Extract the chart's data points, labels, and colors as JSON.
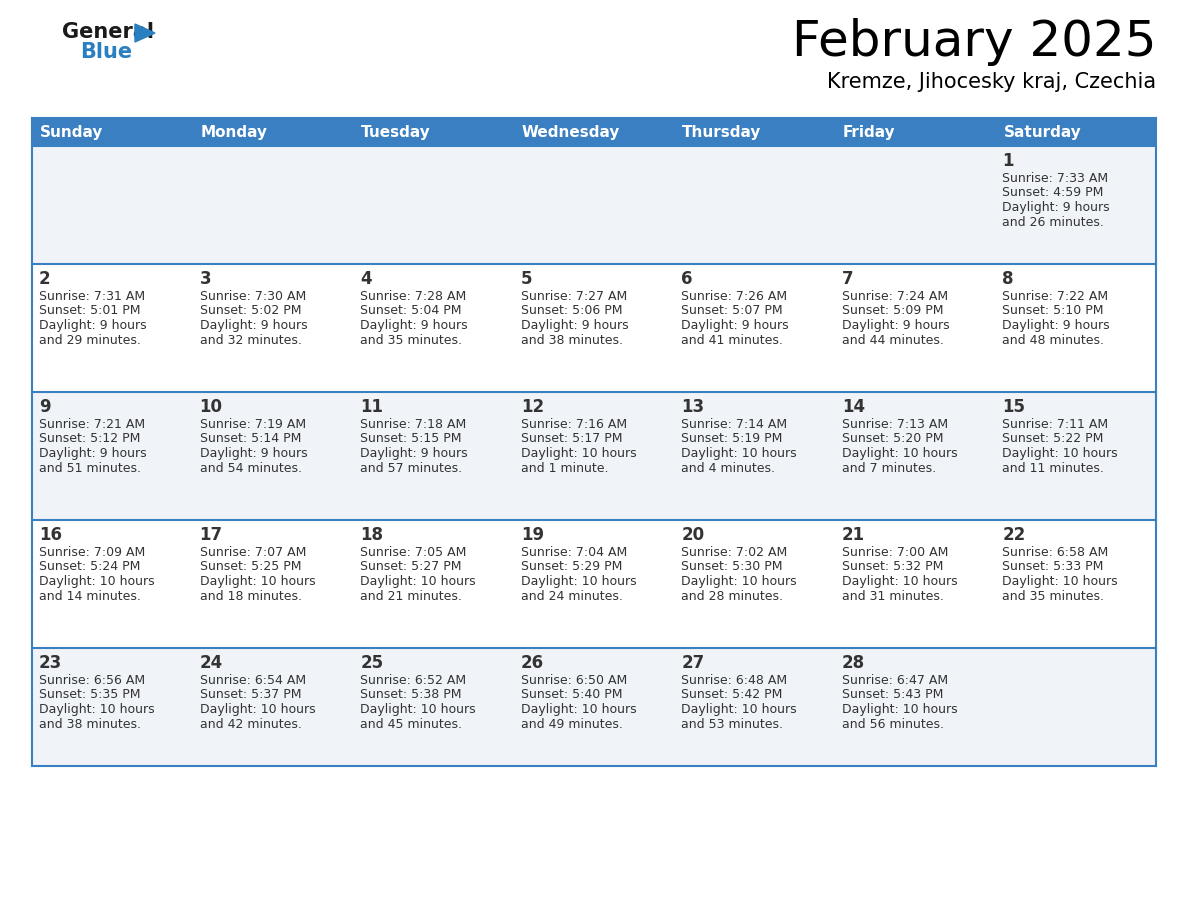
{
  "title": "February 2025",
  "subtitle": "Kremze, Jihocesky kraj, Czechia",
  "header_bg": "#3a7fc1",
  "header_text_color": "#ffffff",
  "border_color": "#3a7fc1",
  "cell_bg_odd": "#f0f4f8",
  "cell_bg_even": "#ffffff",
  "text_color": "#333333",
  "day_names": [
    "Sunday",
    "Monday",
    "Tuesday",
    "Wednesday",
    "Thursday",
    "Friday",
    "Saturday"
  ],
  "days": [
    {
      "day": 1,
      "col": 6,
      "row": 0,
      "sunrise": "7:33 AM",
      "sunset": "4:59 PM",
      "daylight": "9 hours",
      "daylight2": "and 26 minutes."
    },
    {
      "day": 2,
      "col": 0,
      "row": 1,
      "sunrise": "7:31 AM",
      "sunset": "5:01 PM",
      "daylight": "9 hours",
      "daylight2": "and 29 minutes."
    },
    {
      "day": 3,
      "col": 1,
      "row": 1,
      "sunrise": "7:30 AM",
      "sunset": "5:02 PM",
      "daylight": "9 hours",
      "daylight2": "and 32 minutes."
    },
    {
      "day": 4,
      "col": 2,
      "row": 1,
      "sunrise": "7:28 AM",
      "sunset": "5:04 PM",
      "daylight": "9 hours",
      "daylight2": "and 35 minutes."
    },
    {
      "day": 5,
      "col": 3,
      "row": 1,
      "sunrise": "7:27 AM",
      "sunset": "5:06 PM",
      "daylight": "9 hours",
      "daylight2": "and 38 minutes."
    },
    {
      "day": 6,
      "col": 4,
      "row": 1,
      "sunrise": "7:26 AM",
      "sunset": "5:07 PM",
      "daylight": "9 hours",
      "daylight2": "and 41 minutes."
    },
    {
      "day": 7,
      "col": 5,
      "row": 1,
      "sunrise": "7:24 AM",
      "sunset": "5:09 PM",
      "daylight": "9 hours",
      "daylight2": "and 44 minutes."
    },
    {
      "day": 8,
      "col": 6,
      "row": 1,
      "sunrise": "7:22 AM",
      "sunset": "5:10 PM",
      "daylight": "9 hours",
      "daylight2": "and 48 minutes."
    },
    {
      "day": 9,
      "col": 0,
      "row": 2,
      "sunrise": "7:21 AM",
      "sunset": "5:12 PM",
      "daylight": "9 hours",
      "daylight2": "and 51 minutes."
    },
    {
      "day": 10,
      "col": 1,
      "row": 2,
      "sunrise": "7:19 AM",
      "sunset": "5:14 PM",
      "daylight": "9 hours",
      "daylight2": "and 54 minutes."
    },
    {
      "day": 11,
      "col": 2,
      "row": 2,
      "sunrise": "7:18 AM",
      "sunset": "5:15 PM",
      "daylight": "9 hours",
      "daylight2": "and 57 minutes."
    },
    {
      "day": 12,
      "col": 3,
      "row": 2,
      "sunrise": "7:16 AM",
      "sunset": "5:17 PM",
      "daylight": "10 hours",
      "daylight2": "and 1 minute."
    },
    {
      "day": 13,
      "col": 4,
      "row": 2,
      "sunrise": "7:14 AM",
      "sunset": "5:19 PM",
      "daylight": "10 hours",
      "daylight2": "and 4 minutes."
    },
    {
      "day": 14,
      "col": 5,
      "row": 2,
      "sunrise": "7:13 AM",
      "sunset": "5:20 PM",
      "daylight": "10 hours",
      "daylight2": "and 7 minutes."
    },
    {
      "day": 15,
      "col": 6,
      "row": 2,
      "sunrise": "7:11 AM",
      "sunset": "5:22 PM",
      "daylight": "10 hours",
      "daylight2": "and 11 minutes."
    },
    {
      "day": 16,
      "col": 0,
      "row": 3,
      "sunrise": "7:09 AM",
      "sunset": "5:24 PM",
      "daylight": "10 hours",
      "daylight2": "and 14 minutes."
    },
    {
      "day": 17,
      "col": 1,
      "row": 3,
      "sunrise": "7:07 AM",
      "sunset": "5:25 PM",
      "daylight": "10 hours",
      "daylight2": "and 18 minutes."
    },
    {
      "day": 18,
      "col": 2,
      "row": 3,
      "sunrise": "7:05 AM",
      "sunset": "5:27 PM",
      "daylight": "10 hours",
      "daylight2": "and 21 minutes."
    },
    {
      "day": 19,
      "col": 3,
      "row": 3,
      "sunrise": "7:04 AM",
      "sunset": "5:29 PM",
      "daylight": "10 hours",
      "daylight2": "and 24 minutes."
    },
    {
      "day": 20,
      "col": 4,
      "row": 3,
      "sunrise": "7:02 AM",
      "sunset": "5:30 PM",
      "daylight": "10 hours",
      "daylight2": "and 28 minutes."
    },
    {
      "day": 21,
      "col": 5,
      "row": 3,
      "sunrise": "7:00 AM",
      "sunset": "5:32 PM",
      "daylight": "10 hours",
      "daylight2": "and 31 minutes."
    },
    {
      "day": 22,
      "col": 6,
      "row": 3,
      "sunrise": "6:58 AM",
      "sunset": "5:33 PM",
      "daylight": "10 hours",
      "daylight2": "and 35 minutes."
    },
    {
      "day": 23,
      "col": 0,
      "row": 4,
      "sunrise": "6:56 AM",
      "sunset": "5:35 PM",
      "daylight": "10 hours",
      "daylight2": "and 38 minutes."
    },
    {
      "day": 24,
      "col": 1,
      "row": 4,
      "sunrise": "6:54 AM",
      "sunset": "5:37 PM",
      "daylight": "10 hours",
      "daylight2": "and 42 minutes."
    },
    {
      "day": 25,
      "col": 2,
      "row": 4,
      "sunrise": "6:52 AM",
      "sunset": "5:38 PM",
      "daylight": "10 hours",
      "daylight2": "and 45 minutes."
    },
    {
      "day": 26,
      "col": 3,
      "row": 4,
      "sunrise": "6:50 AM",
      "sunset": "5:40 PM",
      "daylight": "10 hours",
      "daylight2": "and 49 minutes."
    },
    {
      "day": 27,
      "col": 4,
      "row": 4,
      "sunrise": "6:48 AM",
      "sunset": "5:42 PM",
      "daylight": "10 hours",
      "daylight2": "and 53 minutes."
    },
    {
      "day": 28,
      "col": 5,
      "row": 4,
      "sunrise": "6:47 AM",
      "sunset": "5:43 PM",
      "daylight": "10 hours",
      "daylight2": "and 56 minutes."
    }
  ],
  "logo_text_color": "#1a1a1a",
  "logo_blue_color": "#2a7fc0",
  "logo_triangle_color": "#2a7fc0",
  "title_fontsize": 36,
  "subtitle_fontsize": 15,
  "header_fontsize": 11,
  "day_num_fontsize": 12,
  "cell_text_fontsize": 9
}
